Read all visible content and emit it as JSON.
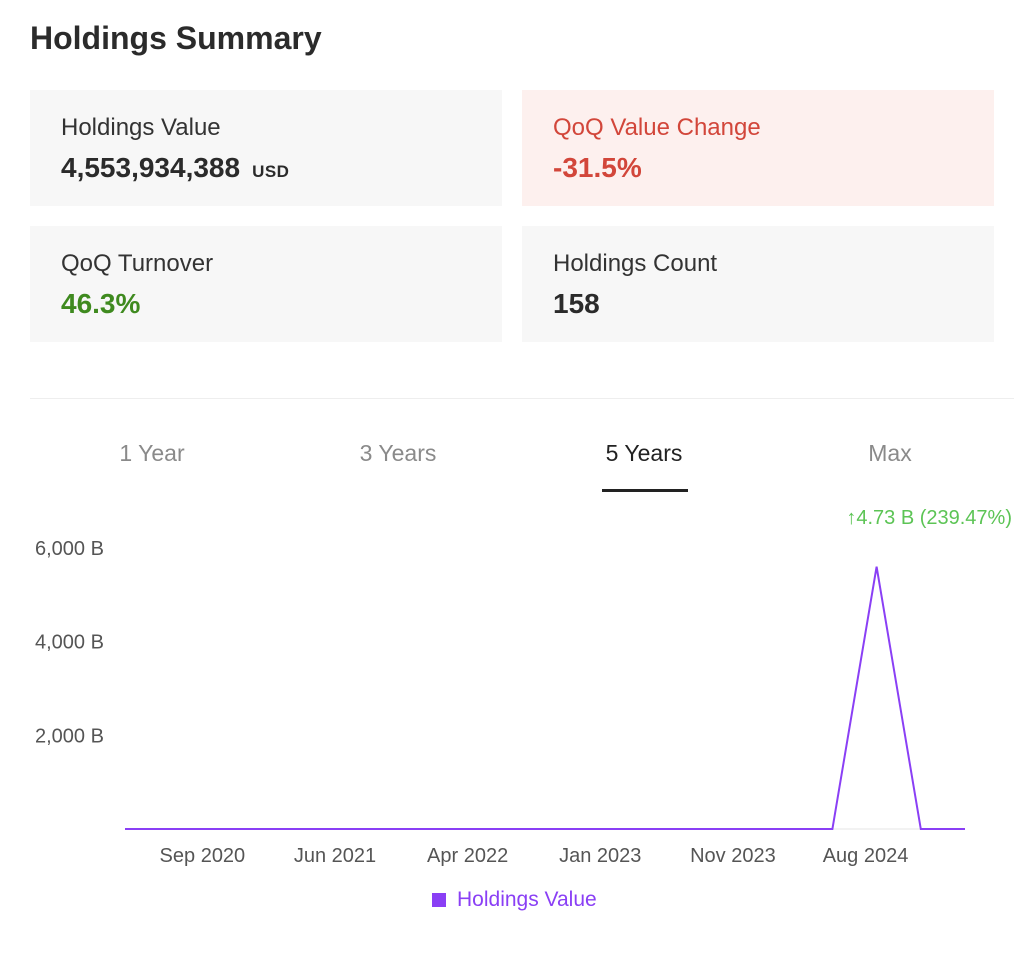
{
  "title": "Holdings Summary",
  "cards": {
    "holdings_value": {
      "label": "Holdings Value",
      "value": "4,553,934,388",
      "unit": "USD"
    },
    "qoq_value_change": {
      "label": "QoQ Value Change",
      "value": "-31.5%"
    },
    "qoq_turnover": {
      "label": "QoQ Turnover",
      "value": "46.3%"
    },
    "holdings_count": {
      "label": "Holdings Count",
      "value": "158"
    }
  },
  "colors": {
    "negative": "#d2463a",
    "positive": "#3f8a1f",
    "series": "#8a3ff5",
    "change_up": "#5cc455"
  },
  "tabs": [
    {
      "label": "1 Year",
      "active": false
    },
    {
      "label": "3 Years",
      "active": false
    },
    {
      "label": "5 Years",
      "active": true
    },
    {
      "label": "Max",
      "active": false
    }
  ],
  "chart_data": {
    "type": "line",
    "change_annotation": "↑4.73 B (239.47%)",
    "y_ticks": [
      {
        "value": 2000,
        "label": "2,000 B"
      },
      {
        "value": 4000,
        "label": "4,000 B"
      },
      {
        "value": 6000,
        "label": "6,000 B"
      }
    ],
    "ylim": [
      0,
      6000
    ],
    "x_ticks": [
      {
        "index": 1.75,
        "label": "Sep 2020"
      },
      {
        "index": 4.75,
        "label": "Jun 2021"
      },
      {
        "index": 7.75,
        "label": "Apr 2022"
      },
      {
        "index": 10.75,
        "label": "Jan 2023"
      },
      {
        "index": 13.75,
        "label": "Nov 2023"
      },
      {
        "index": 16.75,
        "label": "Aug 2024"
      }
    ],
    "series": [
      {
        "name": "Holdings Value",
        "values": [
          0,
          0,
          0,
          0,
          0,
          0,
          0,
          0,
          0,
          0,
          0,
          0,
          0,
          0,
          0,
          0,
          0,
          5600,
          0,
          0
        ]
      }
    ]
  }
}
